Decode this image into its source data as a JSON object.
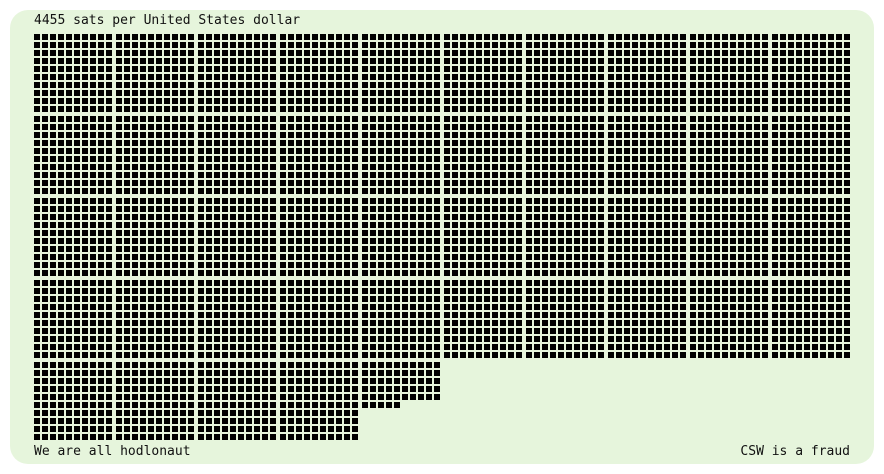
{
  "header": {
    "title": "4455 sats per United States dollar"
  },
  "sats": 4455,
  "grid": {
    "block_columns": 10,
    "block_size": 10
  },
  "footer": {
    "left": "We are all hodlonaut",
    "right": "CSW is a fraud"
  },
  "colors": {
    "background": "#e6f5dc",
    "sat": "#000000",
    "page": "#ffffff"
  }
}
